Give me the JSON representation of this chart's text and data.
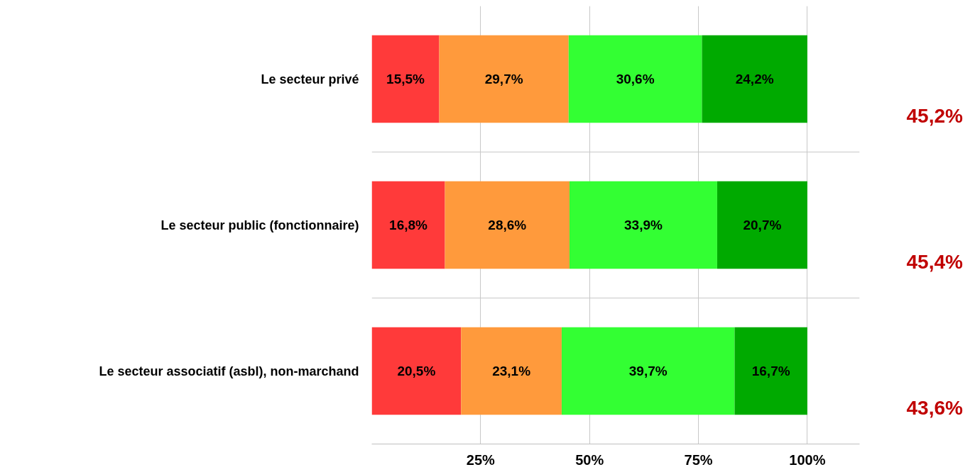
{
  "chart_data": {
    "type": "bar",
    "orientation": "horizontal",
    "stacked": true,
    "categories": [
      "Le secteur privé",
      "Le secteur public (fonctionnaire)",
      "Le secteur associatif (asbl), non-marchand"
    ],
    "series": [
      {
        "color": "#ff3a3a",
        "values": [
          15.5,
          16.8,
          20.5
        ],
        "value_labels": [
          "15,5%",
          "16,8%",
          "20,5%"
        ]
      },
      {
        "color": "#ff9a3c",
        "values": [
          29.7,
          28.6,
          23.1
        ],
        "value_labels": [
          "29,7%",
          "28,6%",
          "23,1%"
        ]
      },
      {
        "color": "#33ff33",
        "values": [
          30.6,
          33.9,
          39.7
        ],
        "value_labels": [
          "30,6%",
          "33,9%",
          "39,7%"
        ]
      },
      {
        "color": "#00aa00",
        "values": [
          24.2,
          20.7,
          16.7
        ],
        "value_labels": [
          "24,2%",
          "20,7%",
          "16,7%"
        ]
      }
    ],
    "xlim": [
      0,
      112
    ],
    "xticks": [
      {
        "value": 25,
        "label": "25%"
      },
      {
        "value": 50,
        "label": "50%"
      },
      {
        "value": 75,
        "label": "75%"
      },
      {
        "value": 100,
        "label": "100%"
      }
    ],
    "grid": true,
    "annotations": [
      "45,2%",
      "45,4%",
      "43,6%"
    ]
  }
}
